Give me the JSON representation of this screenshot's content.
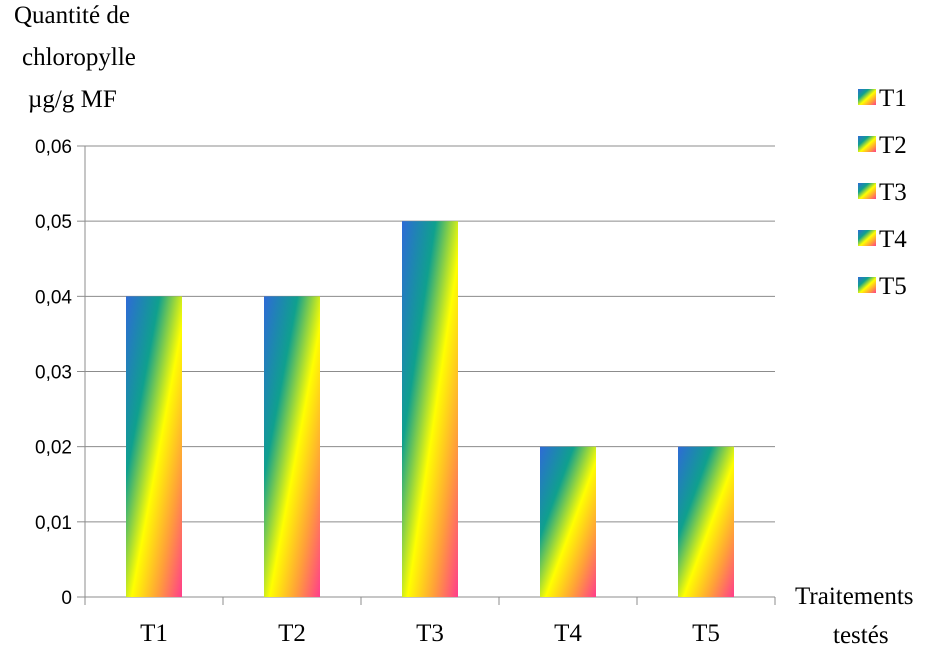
{
  "chart_data": {
    "type": "bar",
    "title": "",
    "ylabel_lines": [
      "Quantité de",
      "chloropylle",
      "µg/g MF"
    ],
    "xlabel_lines": [
      "Traitements",
      "testés"
    ],
    "categories": [
      "T1",
      "T2",
      "T3",
      "T4",
      "T5"
    ],
    "series": [
      {
        "values": [
          0.04,
          0.04,
          0.05,
          0.02,
          0.02
        ]
      }
    ],
    "ylim": [
      0,
      0.06
    ],
    "yticks": [
      0,
      0.01,
      0.02,
      0.03,
      0.04,
      0.05,
      0.06
    ],
    "ytick_labels": [
      "0",
      "0,01",
      "0,02",
      "0,03",
      "0,04",
      "0,05",
      "0,06"
    ],
    "grid": true,
    "legend": {
      "placement": "right",
      "entries": [
        "T1",
        "T2",
        "T3",
        "T4",
        "T5"
      ]
    },
    "colors": {
      "gradient": [
        "#2e6bd6",
        "#0fa08e",
        "#ffff00",
        "#ff9f3a",
        "#ff3d8c"
      ],
      "grid": "#8c8c8c",
      "axis": "#8c8c8c"
    }
  }
}
